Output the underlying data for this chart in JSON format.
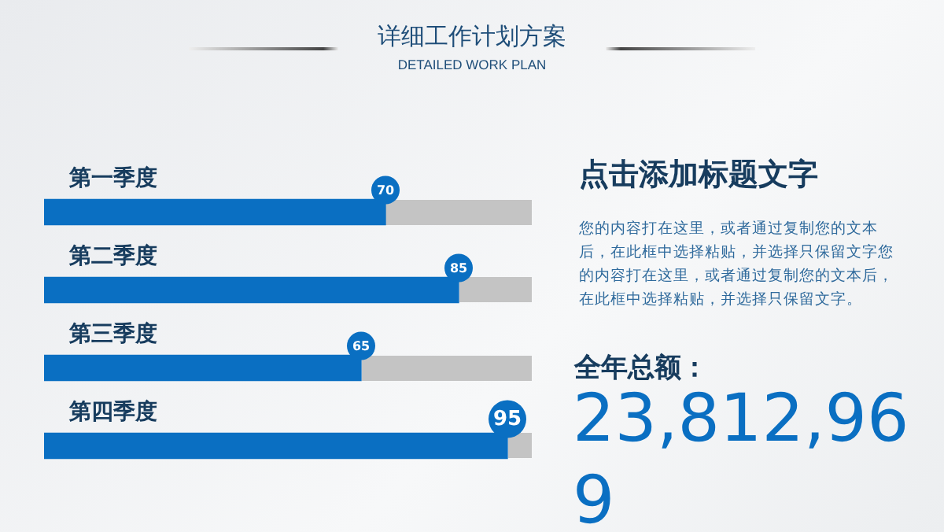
{
  "chart_data": {
    "type": "bar",
    "orientation": "horizontal",
    "title": "详细工作计划方案",
    "subtitle": "DETAILED WORK PLAN",
    "categories": [
      "第一季度",
      "第二季度",
      "第三季度",
      "第四季度"
    ],
    "values": [
      70,
      85,
      65,
      95
    ],
    "color": "#0a6fc2",
    "data_labels": true,
    "legend": false,
    "annotations": [
      "点击添加标题文字",
      "您的内容打在这里，或者通过复制您的文本后，在此框中选择粘贴，并选择只保留文字您的内容打在这里，或者通过复制您的文本后，在此框中选择粘贴，并选择只保留文字。",
      "全年总额：",
      "23,812,969"
    ]
  }
}
